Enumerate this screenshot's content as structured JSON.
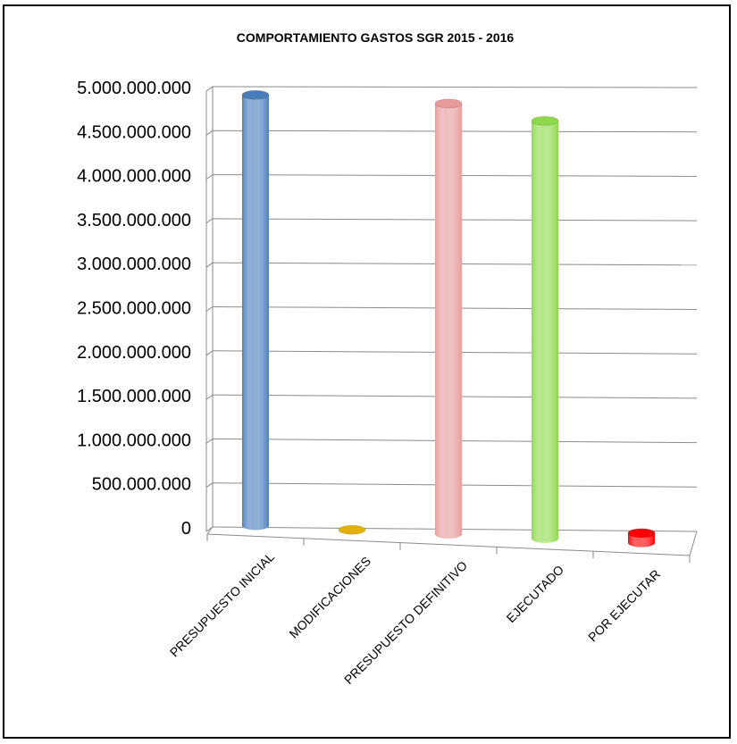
{
  "chart_data": {
    "type": "bar",
    "title": "COMPORTAMIENTO  GASTOS  SGR  2015 - 2016",
    "xlabel": "",
    "ylabel": "",
    "categories": [
      "PRESUPUESTO INICIAL",
      "MODIFICACIONES",
      "PRESUPUESTO DEFINITIVO",
      "EJECUTADO",
      "POR EJECUTAR"
    ],
    "values": [
      4920000000,
      0,
      4920000000,
      4770000000,
      110000000
    ],
    "colors": [
      "#4a7ebb",
      "#e5b100",
      "#e89a9a",
      "#8ed94a",
      "#ff0000"
    ],
    "ylim": [
      0,
      5000000000
    ],
    "yticks": [
      0,
      500000000,
      1000000000,
      1500000000,
      2000000000,
      2500000000,
      3000000000,
      3500000000,
      4000000000,
      4500000000,
      5000000000
    ],
    "ytick_labels": [
      "0",
      "500.000.000",
      "1.000.000.000",
      "1.500.000.000",
      "2.000.000.000",
      "2.500.000.000",
      "3.000.000.000",
      "3.500.000.000",
      "4.000.000.000",
      "4.500.000.000",
      "5.000.000.000"
    ],
    "grid": true,
    "legend": "none"
  }
}
